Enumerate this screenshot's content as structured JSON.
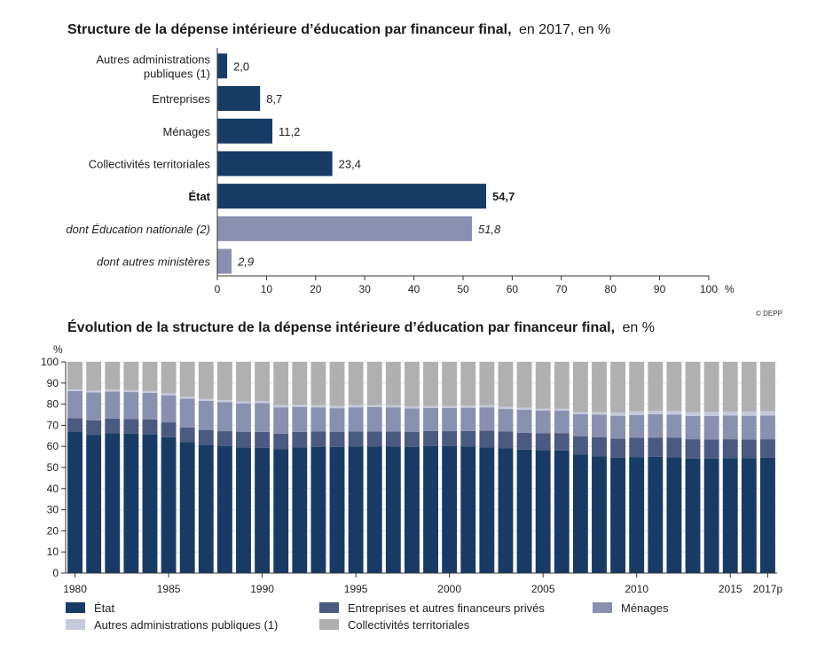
{
  "source": "© DEPP",
  "colors": {
    "etat": "#173b65",
    "entreprises": "#4b5a80",
    "menages": "#8a90b0",
    "autres_admin": "#c5c9dc",
    "collectivites": "#b0b0b0",
    "dont_education": "#8a90b0"
  },
  "chart_data": [
    {
      "type": "bar",
      "orientation": "horizontal",
      "title": "Structure de la dépense intérieure d’éducation par financeur final,",
      "subtitle": "en 2017, en %",
      "categories": [
        "Autres administrations publiques (1)",
        "Entreprises",
        "Ménages",
        "Collectivités territoriales",
        "État",
        "dont Éducation nationale (2)",
        "dont autres ministères"
      ],
      "category_lines": [
        [
          "Autres administrations",
          "publiques (1)"
        ],
        [
          "Entreprises"
        ],
        [
          "Ménages"
        ],
        [
          "Collectivités territoriales"
        ],
        [
          "État"
        ],
        [
          "dont Éducation nationale (2)"
        ],
        [
          "dont autres ministères"
        ]
      ],
      "values": [
        2.0,
        8.7,
        11.2,
        23.4,
        54.7,
        51.8,
        2.9
      ],
      "value_labels": [
        "2,0",
        "8,7",
        "11,2",
        "23,4",
        "54,7",
        "51,8",
        "2,9"
      ],
      "styles": [
        "normal",
        "normal",
        "normal",
        "normal",
        "bold",
        "italic",
        "italic"
      ],
      "xlim": [
        0,
        100
      ],
      "xticks": [
        "0",
        "10",
        "20",
        "30",
        "40",
        "50",
        "60",
        "70",
        "80",
        "90",
        "100"
      ],
      "xunit": "%"
    },
    {
      "type": "bar",
      "stacked": true,
      "title": "Évolution de la structure de la dépense intérieure d’éducation par financeur final,",
      "subtitle": "en %",
      "ylabel": "%",
      "ylim": [
        0,
        100
      ],
      "yticks": [
        "0",
        "10",
        "20",
        "30",
        "40",
        "50",
        "60",
        "70",
        "80",
        "90",
        "100"
      ],
      "grid": true,
      "x": [
        1980,
        1981,
        1982,
        1983,
        1984,
        1985,
        1986,
        1987,
        1988,
        1989,
        1990,
        1991,
        1992,
        1993,
        1994,
        1995,
        1996,
        1997,
        1998,
        1999,
        2000,
        2001,
        2002,
        2003,
        2004,
        2005,
        2006,
        2007,
        2008,
        2009,
        2010,
        2011,
        2012,
        2013,
        2014,
        2015,
        2016,
        2017
      ],
      "x_tick_labels": [
        {
          "index": 0,
          "label": "1980"
        },
        {
          "index": 5,
          "label": "1985"
        },
        {
          "index": 10,
          "label": "1990"
        },
        {
          "index": 15,
          "label": "1995"
        },
        {
          "index": 20,
          "label": "2000"
        },
        {
          "index": 25,
          "label": "2005"
        },
        {
          "index": 30,
          "label": "2010"
        },
        {
          "index": 35,
          "label": "2015"
        },
        {
          "index": 37,
          "label": "2017p"
        }
      ],
      "series": [
        {
          "name": "État",
          "color_key": "etat",
          "values": [
            66.8,
            65.5,
            66.3,
            66.0,
            65.7,
            64.4,
            62.1,
            60.8,
            60.1,
            59.5,
            59.4,
            58.6,
            59.6,
            59.8,
            59.7,
            59.9,
            59.9,
            59.9,
            59.7,
            60.1,
            60.1,
            60.0,
            59.6,
            59.2,
            58.5,
            58.3,
            58.1,
            56.1,
            55.4,
            54.7,
            55.0,
            55.1,
            54.9,
            54.3,
            54.3,
            54.5,
            54.5,
            54.7
          ]
        },
        {
          "name": "Entreprises et autres financeurs privés",
          "color_key": "entreprises",
          "values": [
            6.5,
            6.8,
            6.9,
            7.0,
            7.0,
            7.0,
            6.9,
            7.0,
            7.1,
            7.3,
            7.5,
            7.4,
            7.3,
            7.2,
            7.1,
            7.2,
            7.2,
            7.2,
            7.1,
            7.2,
            7.1,
            7.3,
            7.9,
            7.8,
            8.0,
            8.0,
            8.2,
            8.6,
            8.9,
            9.0,
            9.1,
            9.1,
            9.2,
            9.1,
            9.0,
            8.9,
            8.8,
            8.7
          ]
        },
        {
          "name": "Ménages",
          "color_key": "menages",
          "values": [
            12.9,
            13.2,
            12.8,
            12.7,
            12.6,
            12.8,
            13.6,
            13.7,
            13.8,
            13.6,
            13.6,
            12.5,
            11.8,
            11.5,
            11.3,
            11.4,
            11.5,
            11.4,
            11.2,
            10.9,
            11.0,
            11.0,
            11.0,
            10.7,
            10.8,
            10.7,
            10.6,
            10.5,
            10.7,
            10.8,
            10.8,
            11.0,
            11.0,
            11.0,
            11.1,
            11.2,
            11.2,
            11.2
          ]
        },
        {
          "name": "Autres administrations publiques (1)",
          "color_key": "autres_admin",
          "values": [
            0.8,
            0.9,
            0.9,
            0.9,
            0.9,
            0.9,
            0.9,
            0.9,
            0.9,
            0.9,
            1.0,
            1.0,
            1.0,
            1.0,
            1.0,
            1.0,
            1.0,
            1.0,
            1.0,
            1.0,
            1.0,
            1.0,
            1.0,
            1.0,
            1.0,
            0.9,
            0.9,
            1.0,
            1.2,
            1.5,
            1.7,
            1.6,
            1.7,
            1.8,
            1.9,
            1.9,
            2.0,
            2.0
          ]
        },
        {
          "name": "Collectivités territoriales",
          "color_key": "collectivites",
          "values": [
            13.0,
            13.6,
            13.1,
            13.4,
            13.8,
            14.9,
            16.5,
            17.6,
            18.1,
            18.7,
            18.5,
            20.5,
            20.3,
            20.5,
            20.9,
            20.5,
            20.4,
            20.5,
            21.0,
            20.8,
            20.8,
            20.7,
            20.5,
            21.3,
            21.7,
            22.1,
            22.2,
            23.8,
            23.8,
            24.0,
            23.4,
            23.2,
            23.2,
            23.8,
            23.7,
            23.5,
            23.5,
            23.4
          ]
        }
      ],
      "legend_placement": "bottom",
      "legend_order": [
        0,
        1,
        2,
        3,
        4
      ]
    }
  ]
}
